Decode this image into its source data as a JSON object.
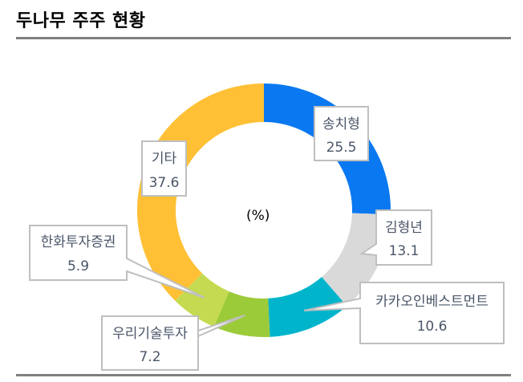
{
  "header": {
    "title": "두나무 주주 현황"
  },
  "chart_data": {
    "type": "pie",
    "subtype": "donut",
    "title": "두나무 주주 현황",
    "unit_label": "(%)",
    "categories": [
      "송치형",
      "김형년",
      "카카오인베스트먼트",
      "우리기술투자",
      "한화투자증권",
      "기타"
    ],
    "values": [
      25.5,
      13.1,
      10.6,
      7.2,
      5.9,
      37.6
    ],
    "colors": [
      "#0A78F0",
      "#D9D9D9",
      "#00B4CC",
      "#9CCB3A",
      "#C5DA50",
      "#FFC036"
    ],
    "start_angle": "12 o'clock, clockwise",
    "legend": "none (callout labels)"
  },
  "labels": [
    {
      "name": "송치형",
      "value": "25.5"
    },
    {
      "name": "김형년",
      "value": "13.1"
    },
    {
      "name": "카카오인베스트먼트",
      "value": "10.6"
    },
    {
      "name": "우리기술투자",
      "value": "7.2"
    },
    {
      "name": "한화투자증권",
      "value": "5.9"
    },
    {
      "name": "기타",
      "value": "37.6"
    }
  ]
}
